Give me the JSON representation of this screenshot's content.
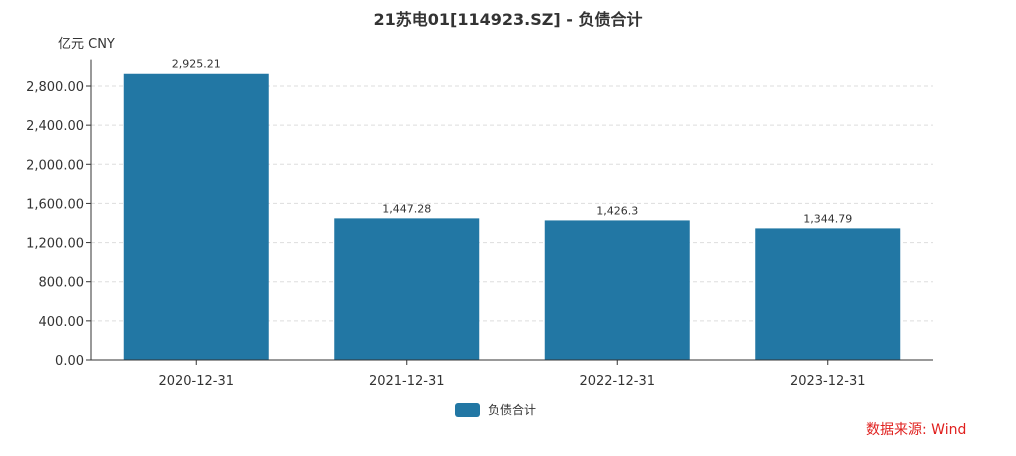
{
  "chart_data": {
    "type": "bar",
    "title": "21苏电01[114923.SZ] - 负债合计",
    "ylabel": "亿元  CNY",
    "categories": [
      "2020-12-31",
      "2021-12-31",
      "2022-12-31",
      "2023-12-31"
    ],
    "series": [
      {
        "name": "负债合计",
        "values": [
          2925.21,
          1447.28,
          1426.3,
          1344.79
        ],
        "labels": [
          "2,925.21",
          "1,447.28",
          "1,426.3",
          "1,344.79"
        ],
        "color": "#2277a4"
      }
    ],
    "yticks": [
      "0.00",
      "400.00",
      "800.00",
      "1,200.00",
      "1,600.00",
      "2,000.00",
      "2,400.00",
      "2,800.00"
    ],
    "ytick_values": [
      0,
      400,
      800,
      1200,
      1600,
      2000,
      2400,
      2800
    ],
    "ylim": [
      0,
      3070
    ],
    "grid": true,
    "legend": "bottom-center"
  },
  "source": "数据来源: Wind"
}
